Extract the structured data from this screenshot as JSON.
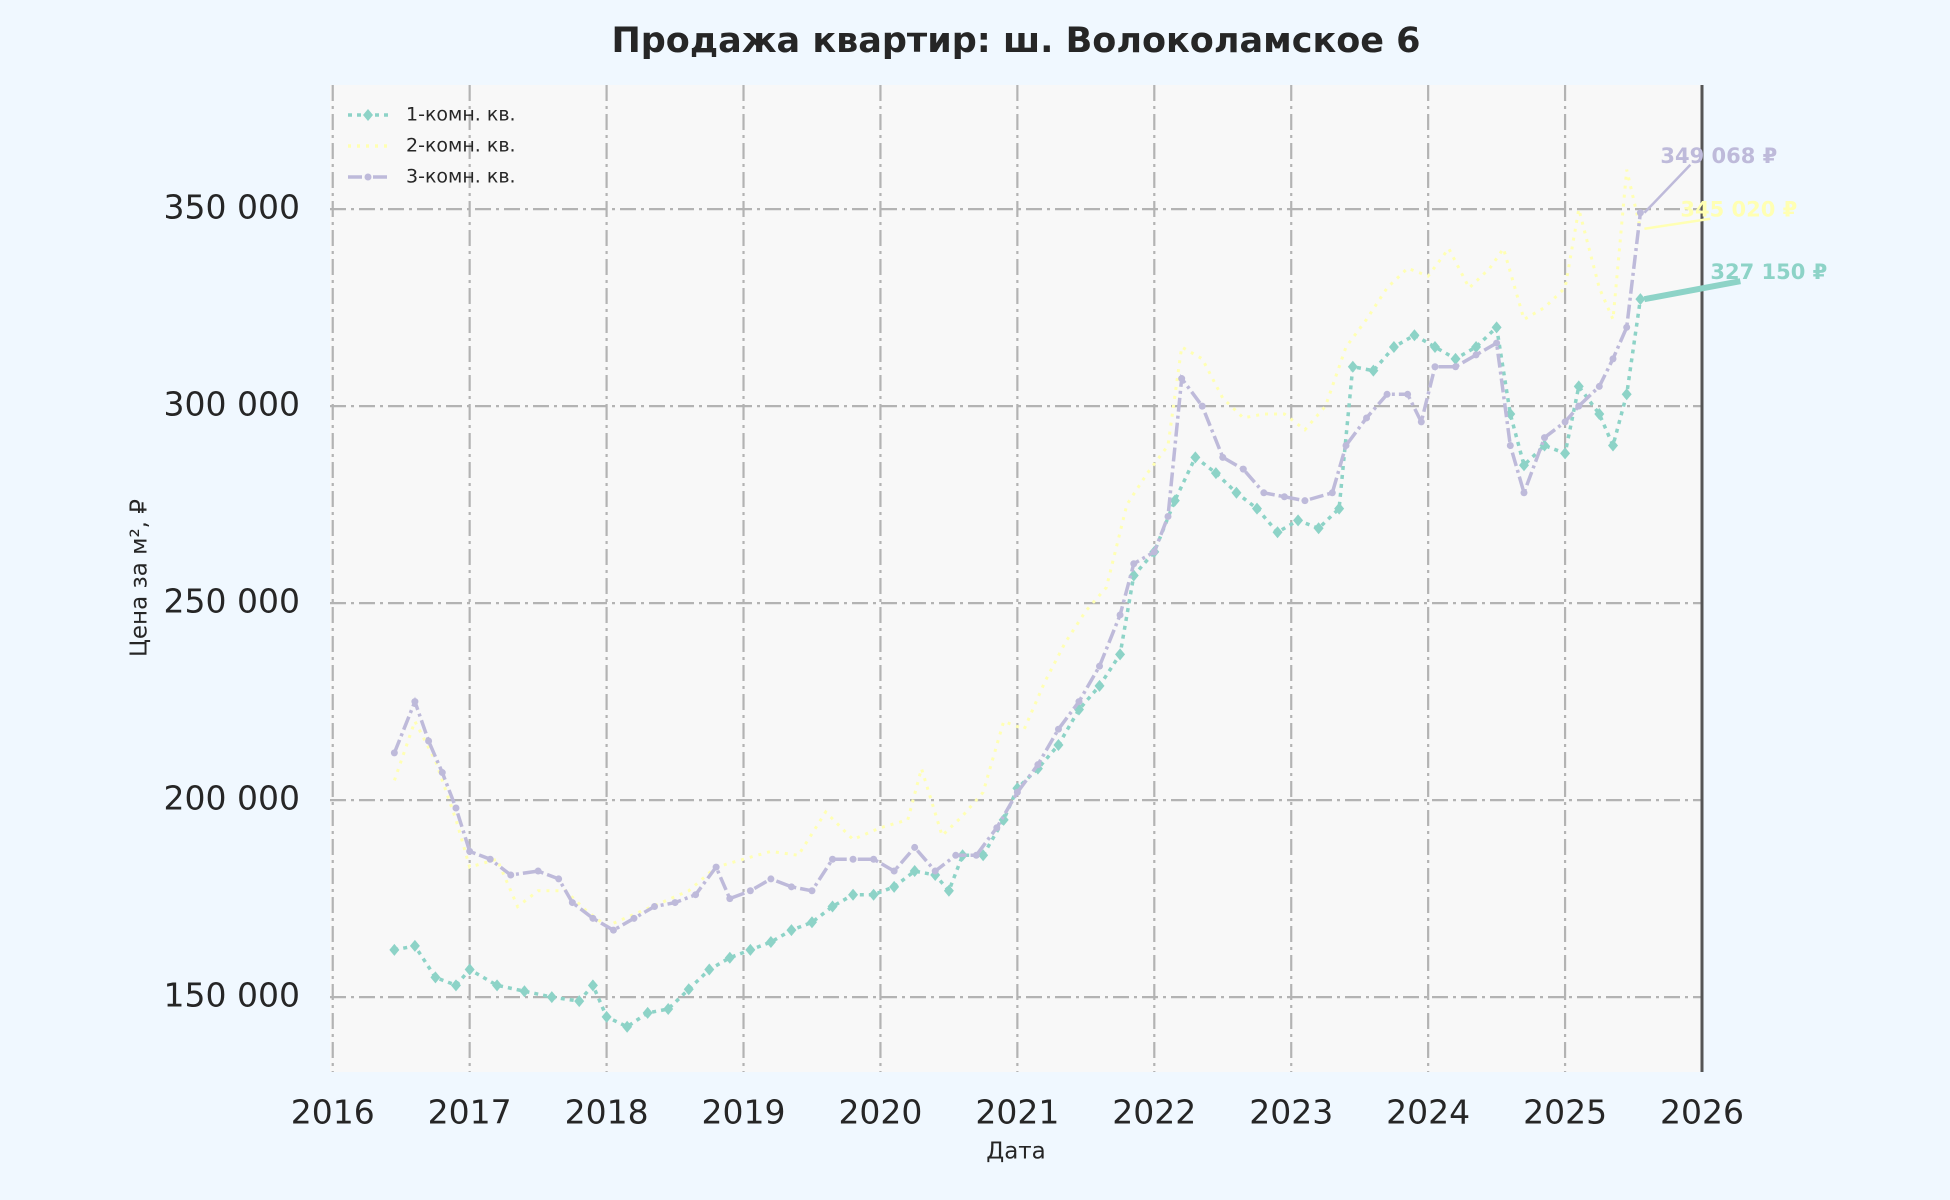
{
  "chart_data": {
    "type": "line",
    "title": "Продажа квартир: ш. Волоколамское 6",
    "xlabel": "Дата",
    "ylabel": "Цена за м², ₽",
    "legend": "upper left",
    "grid": true,
    "xlim": [
      2015.98,
      2026
    ],
    "xticks": [
      2016,
      2017,
      2018,
      2019,
      2020,
      2021,
      2022,
      2023,
      2024,
      2025,
      2026
    ],
    "ylim": [
      131000,
      381500
    ],
    "yticks": [
      {
        "value": 150000,
        "label": "150 000"
      },
      {
        "value": 200000,
        "label": "200 000"
      },
      {
        "value": 250000,
        "label": "250 000"
      },
      {
        "value": 300000,
        "label": "300 000"
      },
      {
        "value": 350000,
        "label": "350 000"
      }
    ],
    "series": [
      {
        "name": "1-комн. кв.",
        "color": "#8dd3c7",
        "marker": "diamond",
        "x": [
          2016.45,
          2016.6,
          2016.75,
          2016.9,
          2017.0,
          2017.2,
          2017.4,
          2017.6,
          2017.8,
          2017.9,
          2018.0,
          2018.15,
          2018.3,
          2018.45,
          2018.6,
          2018.75,
          2018.9,
          2019.05,
          2019.2,
          2019.35,
          2019.5,
          2019.65,
          2019.8,
          2019.95,
          2020.1,
          2020.25,
          2020.4,
          2020.5,
          2020.6,
          2020.75,
          2020.9,
          2021.0,
          2021.15,
          2021.3,
          2021.45,
          2021.6,
          2021.75,
          2021.85,
          2022.0,
          2022.15,
          2022.3,
          2022.45,
          2022.6,
          2022.75,
          2022.9,
          2023.05,
          2023.2,
          2023.35,
          2023.45,
          2023.6,
          2023.75,
          2023.9,
          2024.05,
          2024.2,
          2024.35,
          2024.5,
          2024.6,
          2024.7,
          2024.85,
          2025.0,
          2025.1,
          2025.25,
          2025.35,
          2025.45,
          2025.55
        ],
        "values": [
          162000,
          163000,
          155000,
          153000,
          157000,
          153000,
          151500,
          150000,
          149000,
          153000,
          145000,
          142500,
          146000,
          147000,
          152000,
          157000,
          160000,
          162000,
          164000,
          167000,
          169000,
          173000,
          176000,
          176000,
          178000,
          182000,
          181000,
          177000,
          186000,
          186000,
          195000,
          203000,
          208000,
          214000,
          223000,
          229000,
          237000,
          257000,
          263000,
          276000,
          287000,
          283000,
          278000,
          274000,
          268000,
          271000,
          269000,
          274000,
          310000,
          309000,
          315000,
          318000,
          315000,
          312000,
          315000,
          320000,
          298000,
          285000,
          290000,
          288000,
          305000,
          298000,
          290000,
          303000,
          327150
        ]
      },
      {
        "name": "2-комн. кв.",
        "color": "#ffffb3",
        "marker": "none",
        "x": [
          2016.45,
          2016.6,
          2016.75,
          2016.9,
          2017.0,
          2017.2,
          2017.35,
          2017.5,
          2017.7,
          2017.85,
          2018.0,
          2018.2,
          2018.4,
          2018.6,
          2018.8,
          2019.0,
          2019.2,
          2019.4,
          2019.6,
          2019.8,
          2020.0,
          2020.2,
          2020.3,
          2020.45,
          2020.6,
          2020.75,
          2020.9,
          2021.05,
          2021.2,
          2021.35,
          2021.5,
          2021.65,
          2021.8,
          2021.95,
          2022.1,
          2022.2,
          2022.35,
          2022.5,
          2022.65,
          2022.8,
          2022.95,
          2023.1,
          2023.25,
          2023.4,
          2023.55,
          2023.7,
          2023.85,
          2024.0,
          2024.15,
          2024.3,
          2024.45,
          2024.55,
          2024.7,
          2024.85,
          2025.0,
          2025.1,
          2025.25,
          2025.35,
          2025.45,
          2025.55
        ],
        "values": [
          205000,
          220000,
          210000,
          195000,
          183000,
          185000,
          173000,
          177000,
          177000,
          172000,
          168000,
          171000,
          174000,
          177000,
          183000,
          185000,
          187000,
          186000,
          197000,
          190000,
          193000,
          195000,
          208000,
          191000,
          196000,
          202000,
          220000,
          218000,
          230000,
          240000,
          248000,
          254000,
          275000,
          283000,
          290000,
          315000,
          312000,
          302000,
          297000,
          298000,
          298000,
          294000,
          300000,
          315000,
          322000,
          330000,
          335000,
          333000,
          340000,
          330000,
          335000,
          340000,
          322000,
          325000,
          330000,
          350000,
          330000,
          322000,
          360000,
          345020
        ]
      },
      {
        "name": "3-комн. кв.",
        "color": "#bebada",
        "marker": "circle",
        "x": [
          2016.45,
          2016.6,
          2016.7,
          2016.8,
          2016.9,
          2017.0,
          2017.15,
          2017.3,
          2017.5,
          2017.65,
          2017.75,
          2017.9,
          2018.05,
          2018.2,
          2018.35,
          2018.5,
          2018.65,
          2018.8,
          2018.9,
          2019.05,
          2019.2,
          2019.35,
          2019.5,
          2019.65,
          2019.8,
          2019.95,
          2020.1,
          2020.25,
          2020.4,
          2020.55,
          2020.7,
          2020.85,
          2021.0,
          2021.15,
          2021.3,
          2021.45,
          2021.6,
          2021.75,
          2021.85,
          2022.0,
          2022.1,
          2022.2,
          2022.35,
          2022.5,
          2022.65,
          2022.8,
          2022.95,
          2023.1,
          2023.3,
          2023.4,
          2023.55,
          2023.7,
          2023.85,
          2023.95,
          2024.05,
          2024.2,
          2024.35,
          2024.5,
          2024.6,
          2024.7,
          2024.85,
          2025.0,
          2025.1,
          2025.25,
          2025.35,
          2025.45,
          2025.55
        ],
        "values": [
          212000,
          225000,
          215000,
          207000,
          198000,
          187000,
          185000,
          181000,
          182000,
          180000,
          174000,
          170000,
          167000,
          170000,
          173000,
          174000,
          176000,
          183000,
          175000,
          177000,
          180000,
          178000,
          177000,
          185000,
          185000,
          185000,
          182000,
          188000,
          182000,
          186000,
          186000,
          193000,
          202000,
          209000,
          218000,
          225000,
          234000,
          247000,
          260000,
          263000,
          272000,
          307000,
          300000,
          287000,
          284000,
          278000,
          277000,
          276000,
          278000,
          290000,
          297000,
          303000,
          303000,
          296000,
          310000,
          310000,
          313000,
          316000,
          290000,
          278000,
          292000,
          296000,
          300000,
          305000,
          312000,
          320000,
          349068
        ]
      }
    ],
    "annotations": [
      {
        "series": 0,
        "text": "327 150 ₽",
        "value": 327150
      },
      {
        "series": 1,
        "text": "345 020 ₽",
        "value": 345020
      },
      {
        "series": 2,
        "text": "349 068 ₽",
        "value": 349068
      }
    ]
  }
}
